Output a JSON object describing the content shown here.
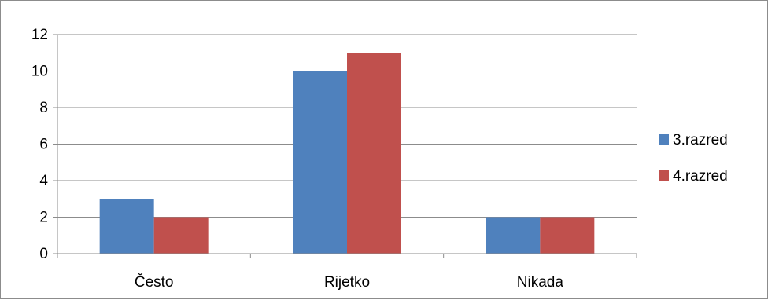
{
  "chart_data": {
    "type": "bar",
    "title": "",
    "xlabel": "",
    "ylabel": "",
    "categories": [
      "Često",
      "Rijetko",
      "Nikada"
    ],
    "series": [
      {
        "name": "3.razred",
        "values": [
          3,
          10,
          2
        ],
        "color": "#4f81bd"
      },
      {
        "name": "4.razred",
        "values": [
          2,
          11,
          2
        ],
        "color": "#c0504d"
      }
    ],
    "ylim": [
      0,
      12
    ],
    "yticks": [
      0,
      2,
      4,
      6,
      8,
      10,
      12
    ],
    "grid": true,
    "legend_position": "right"
  }
}
